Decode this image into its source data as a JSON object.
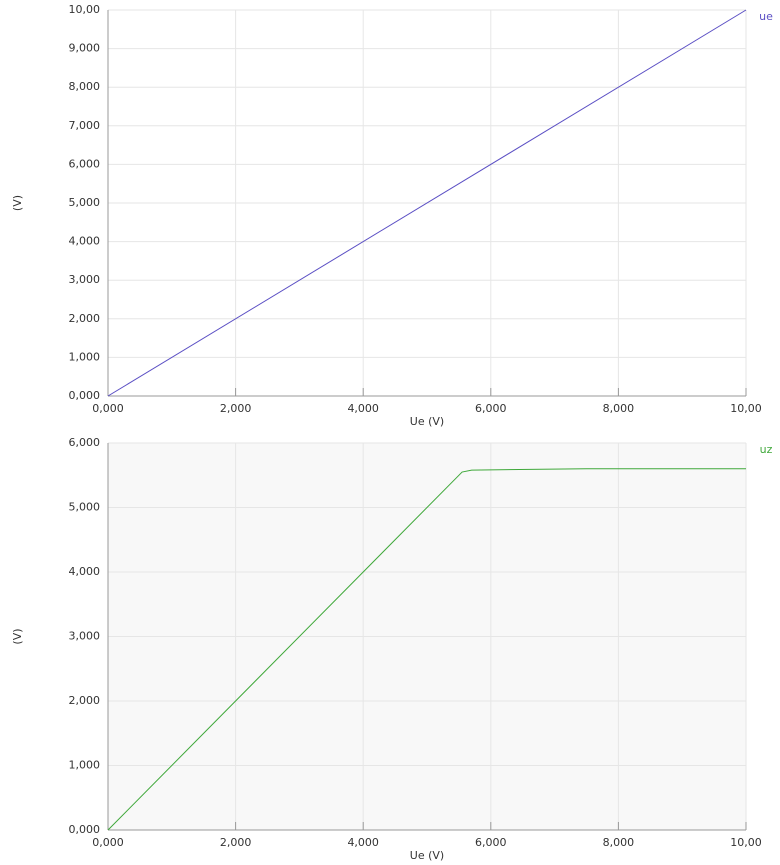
{
  "chart_data": [
    {
      "type": "line",
      "xlabel": "Ue (V)",
      "ylabel": "(V)",
      "x": [
        0,
        10
      ],
      "series": [
        {
          "name": "ue",
          "color": "#5b4fc4",
          "values": [
            0,
            10
          ]
        }
      ],
      "xlim": [
        0,
        10
      ],
      "ylim": [
        0,
        10
      ],
      "xticks": [
        {
          "value": 0,
          "label": "0,000"
        },
        {
          "value": 2,
          "label": "2,000"
        },
        {
          "value": 4,
          "label": "4,000"
        },
        {
          "value": 6,
          "label": "6,000"
        },
        {
          "value": 8,
          "label": "8,000"
        },
        {
          "value": 10,
          "label": "10,00"
        }
      ],
      "yticks": [
        {
          "value": 0,
          "label": "0,000"
        },
        {
          "value": 1,
          "label": "1,000"
        },
        {
          "value": 2,
          "label": "2,000"
        },
        {
          "value": 3,
          "label": "3,000"
        },
        {
          "value": 4,
          "label": "4,000"
        },
        {
          "value": 5,
          "label": "5,000"
        },
        {
          "value": 6,
          "label": "6,000"
        },
        {
          "value": 7,
          "label": "7,000"
        },
        {
          "value": 8,
          "label": "8,000"
        },
        {
          "value": 9,
          "label": "9,000"
        },
        {
          "value": 10,
          "label": "10,00"
        }
      ],
      "grid": true
    },
    {
      "type": "line",
      "xlabel": "Ue (V)",
      "ylabel": "(V)",
      "x": [
        0,
        5.55,
        5.7,
        7.5,
        10
      ],
      "series": [
        {
          "name": "uz",
          "color": "#3fa83a",
          "values": [
            0,
            5.55,
            5.58,
            5.6,
            5.6
          ]
        }
      ],
      "xlim": [
        0,
        10
      ],
      "ylim": [
        0,
        6
      ],
      "xticks": [
        {
          "value": 0,
          "label": "0,000"
        },
        {
          "value": 2,
          "label": "2,000"
        },
        {
          "value": 4,
          "label": "4,000"
        },
        {
          "value": 6,
          "label": "6,000"
        },
        {
          "value": 8,
          "label": "8,000"
        },
        {
          "value": 10,
          "label": "10,00"
        }
      ],
      "yticks": [
        {
          "value": 0,
          "label": "0,000"
        },
        {
          "value": 1,
          "label": "1,000"
        },
        {
          "value": 2,
          "label": "2,000"
        },
        {
          "value": 3,
          "label": "3,000"
        },
        {
          "value": 4,
          "label": "4,000"
        },
        {
          "value": 5,
          "label": "5,000"
        },
        {
          "value": 6,
          "label": "6,000"
        }
      ],
      "grid": true
    }
  ]
}
